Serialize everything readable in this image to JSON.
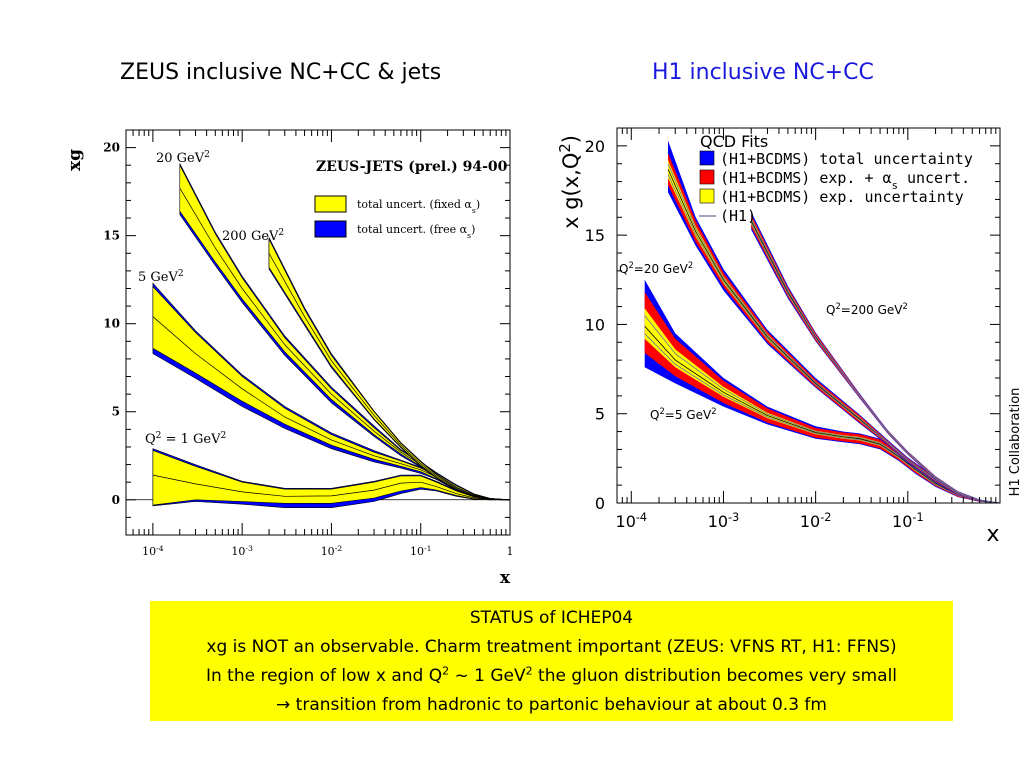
{
  "slide": {
    "title_left": "ZEUS inclusive NC+CC & jets",
    "title_right": "H1 inclusive NC+CC",
    "title_right_color": "#1a1adc",
    "status": {
      "title": "STATUS of ICHEP04",
      "line1": "xg is NOT an observable. Charm treatment important (ZEUS: VFNS RT, H1: FFNS)",
      "line2_pre": "In the region of low x and  Q",
      "line2_sup1": "2",
      "line2_mid": " ~ 1 GeV",
      "line2_sup2": "2",
      "line2_post": "  the gluon distribution becomes very small",
      "line3": "→ transition from hadronic to partonic behaviour at about 0.3 fm",
      "background": "#ffff00"
    }
  },
  "chart_data": [
    {
      "id": "zeus",
      "type": "area",
      "xscale": "log",
      "xlim": [
        5e-05,
        1
      ],
      "ylim": [
        -2,
        21
      ],
      "xticks": [
        0.0001,
        0.001,
        0.01,
        0.1,
        1
      ],
      "xtick_labels": [
        [
          "10",
          "-4"
        ],
        [
          "10",
          "-3"
        ],
        [
          "10",
          "-2"
        ],
        [
          "10",
          "-1"
        ],
        [
          "1",
          ""
        ]
      ],
      "yticks": [
        0,
        5,
        10,
        15,
        20
      ],
      "ytick_labels": [
        "0",
        "5",
        "10",
        "15",
        "20"
      ],
      "xlabel": "x",
      "ylabel": "xg",
      "title": "ZEUS-JETS (prel.) 94-00",
      "legend": [
        {
          "label": "total uncert. (fixed α",
          "sub": "s",
          "close": ")",
          "color": "#ffff00"
        },
        {
          "label": "total uncert. (free α",
          "sub": "s",
          "close": ")",
          "color": "#0000ff"
        }
      ],
      "band_colors": {
        "outer": "#0000ff",
        "inner": "#ffff00",
        "line": "#000000"
      },
      "series": [
        {
          "name": "Q2 = 1 GeV2",
          "label_main": "Q",
          "label_sup1": "2",
          "label_rest": " = 1 GeV",
          "label_sup2": "2",
          "x": [
            0.0001,
            0.0003,
            0.001,
            0.003,
            0.01,
            0.03,
            0.06,
            0.1,
            0.15,
            0.25,
            0.4,
            0.6,
            1.0
          ],
          "central": [
            1.4,
            0.9,
            0.45,
            0.2,
            0.22,
            0.55,
            0.95,
            1.0,
            0.75,
            0.35,
            0.1,
            0.02,
            0.0
          ],
          "inner_lo": [
            -0.3,
            0.0,
            -0.1,
            -0.2,
            -0.2,
            0.1,
            0.5,
            0.7,
            0.55,
            0.25,
            0.05,
            0.0,
            0.0
          ],
          "inner_hi": [
            2.8,
            1.9,
            1.0,
            0.6,
            0.6,
            1.0,
            1.35,
            1.35,
            1.0,
            0.5,
            0.15,
            0.03,
            0.0
          ],
          "outer_lo": [
            -0.35,
            -0.1,
            -0.25,
            -0.45,
            -0.45,
            -0.1,
            0.35,
            0.6,
            0.5,
            0.2,
            0.03,
            0.0,
            0.0
          ],
          "outer_hi": [
            2.9,
            2.0,
            1.05,
            0.65,
            0.65,
            1.05,
            1.4,
            1.4,
            1.05,
            0.55,
            0.17,
            0.03,
            0.0
          ]
        },
        {
          "name": "5 GeV2",
          "label_main": "5 GeV",
          "label_sup2": "2",
          "x": [
            0.0001,
            0.0003,
            0.001,
            0.003,
            0.01,
            0.03,
            0.06,
            0.1,
            0.15,
            0.25,
            0.4,
            0.6,
            1.0
          ],
          "central": [
            10.4,
            8.3,
            6.3,
            4.7,
            3.4,
            2.5,
            2.05,
            1.7,
            1.3,
            0.7,
            0.25,
            0.05,
            0.0
          ],
          "inner_lo": [
            8.6,
            7.2,
            5.6,
            4.3,
            3.1,
            2.3,
            1.9,
            1.6,
            1.2,
            0.6,
            0.2,
            0.03,
            0.0
          ],
          "inner_hi": [
            12.1,
            9.5,
            7.0,
            5.2,
            3.7,
            2.7,
            2.2,
            1.8,
            1.4,
            0.8,
            0.3,
            0.07,
            0.0
          ],
          "outer_lo": [
            8.3,
            6.9,
            5.3,
            4.05,
            2.9,
            2.15,
            1.8,
            1.5,
            1.15,
            0.55,
            0.18,
            0.02,
            0.0
          ],
          "outer_hi": [
            12.3,
            9.6,
            7.1,
            5.3,
            3.8,
            2.8,
            2.25,
            1.85,
            1.45,
            0.85,
            0.32,
            0.08,
            0.0
          ]
        },
        {
          "name": "20 GeV2",
          "label_main": "20 GeV",
          "label_sup2": "2",
          "x": [
            0.0002,
            0.0005,
            0.001,
            0.003,
            0.01,
            0.03,
            0.06,
            0.1,
            0.15,
            0.25,
            0.4,
            0.6,
            1.0
          ],
          "central": [
            17.7,
            14.3,
            12.0,
            8.8,
            6.0,
            3.9,
            2.7,
            2.0,
            1.4,
            0.7,
            0.25,
            0.05,
            0.0
          ],
          "inner_lo": [
            16.4,
            13.5,
            11.4,
            8.4,
            5.7,
            3.7,
            2.6,
            1.9,
            1.3,
            0.6,
            0.2,
            0.03,
            0.0
          ],
          "inner_hi": [
            19.0,
            15.1,
            12.6,
            9.2,
            6.3,
            4.1,
            2.8,
            2.1,
            1.5,
            0.8,
            0.3,
            0.07,
            0.0
          ],
          "outer_lo": [
            16.2,
            13.3,
            11.2,
            8.2,
            5.5,
            3.6,
            2.5,
            1.85,
            1.25,
            0.55,
            0.18,
            0.02,
            0.0
          ],
          "outer_hi": [
            19.1,
            15.2,
            12.7,
            9.3,
            6.4,
            4.2,
            2.85,
            2.15,
            1.55,
            0.85,
            0.32,
            0.08,
            0.0
          ]
        },
        {
          "name": "200 GeV2",
          "label_main": "200 GeV",
          "label_sup2": "2",
          "x": [
            0.002,
            0.005,
            0.01,
            0.03,
            0.06,
            0.1,
            0.15,
            0.25,
            0.4,
            0.6,
            1.0
          ],
          "central": [
            14.0,
            10.4,
            7.9,
            4.8,
            3.1,
            2.05,
            1.35,
            0.65,
            0.22,
            0.04,
            0.0
          ],
          "inner_lo": [
            13.2,
            10.0,
            7.6,
            4.6,
            3.0,
            1.95,
            1.28,
            0.6,
            0.19,
            0.03,
            0.0
          ],
          "inner_hi": [
            14.8,
            10.8,
            8.2,
            5.0,
            3.2,
            2.15,
            1.42,
            0.7,
            0.25,
            0.05,
            0.0
          ],
          "outer_lo": [
            13.1,
            9.9,
            7.5,
            4.55,
            2.95,
            1.9,
            1.25,
            0.58,
            0.18,
            0.02,
            0.0
          ],
          "outer_hi": [
            14.9,
            10.9,
            8.3,
            5.05,
            3.25,
            2.2,
            1.45,
            0.72,
            0.26,
            0.06,
            0.0
          ]
        }
      ]
    },
    {
      "id": "h1",
      "type": "area",
      "xscale": "log",
      "xlim": [
        7e-05,
        1
      ],
      "ylim": [
        0,
        21
      ],
      "xticks": [
        0.0001,
        0.001,
        0.01,
        0.1
      ],
      "xtick_labels": [
        [
          "10",
          "-4"
        ],
        [
          "10",
          "-3"
        ],
        [
          "10",
          "-2"
        ],
        [
          "10",
          "-1"
        ]
      ],
      "yticks": [
        0,
        5,
        10,
        15,
        20
      ],
      "ytick_labels": [
        "0",
        "5",
        "10",
        "15",
        "20"
      ],
      "xlabel": "x",
      "ylabel": "x g(x,Q",
      "ylabel_sup": "2",
      "ylabel_close": ")",
      "side_label": "H1 Collaboration",
      "legend_title": "QCD Fits",
      "legend": [
        {
          "label": "(H1+BCDMS) total uncertainty",
          "color": "#0000ff",
          "kind": "box"
        },
        {
          "label": "(H1+BCDMS) exp. + α",
          "sub": "s",
          "close": " uncert.",
          "color": "#ff0000",
          "kind": "box"
        },
        {
          "label": "(H1+BCDMS) exp. uncertainty",
          "color": "#ffff00",
          "kind": "box"
        },
        {
          "label": "(H1)",
          "color": "#6b6b9a",
          "kind": "line"
        }
      ],
      "band_colors": {
        "outer": "#0000ff",
        "middle": "#ff0000",
        "inner": "#ffff00",
        "line": "#000000",
        "h1": "#6b6b9a"
      },
      "series": [
        {
          "name": "Q2=5 GeV2",
          "label_main": "Q",
          "label_sup1": "2",
          "label_rest": "=5 GeV",
          "label_sup2": "2",
          "x": [
            0.00014,
            0.0003,
            0.001,
            0.003,
            0.01,
            0.02,
            0.03,
            0.05,
            0.08,
            0.12,
            0.2,
            0.35,
            0.6,
            1.0
          ],
          "central": [
            9.9,
            8.0,
            6.2,
            4.9,
            3.95,
            3.7,
            3.6,
            3.3,
            2.6,
            1.9,
            1.1,
            0.45,
            0.12,
            0.0
          ],
          "inner_lo": [
            9.2,
            7.6,
            5.95,
            4.75,
            3.85,
            3.6,
            3.5,
            3.2,
            2.5,
            1.8,
            1.0,
            0.4,
            0.1,
            0.0
          ],
          "inner_hi": [
            10.9,
            8.6,
            6.5,
            5.05,
            4.05,
            3.8,
            3.7,
            3.4,
            2.7,
            2.0,
            1.2,
            0.5,
            0.14,
            0.0
          ],
          "mid_lo": [
            8.4,
            7.1,
            5.6,
            4.5,
            3.65,
            3.45,
            3.35,
            3.05,
            2.4,
            1.7,
            0.95,
            0.35,
            0.08,
            0.0
          ],
          "mid_hi": [
            11.8,
            9.2,
            6.85,
            5.3,
            4.2,
            3.95,
            3.85,
            3.55,
            2.8,
            2.1,
            1.25,
            0.55,
            0.16,
            0.0
          ],
          "outer_lo": [
            7.6,
            6.7,
            5.4,
            4.4,
            3.6,
            3.4,
            3.3,
            3.0,
            2.35,
            1.65,
            0.9,
            0.33,
            0.07,
            0.0
          ],
          "outer_hi": [
            12.5,
            9.5,
            7.0,
            5.4,
            4.3,
            4.0,
            3.9,
            3.6,
            2.85,
            2.15,
            1.3,
            0.58,
            0.17,
            0.0
          ]
        },
        {
          "name": "Q2=20 GeV2",
          "label_main": "Q",
          "label_sup1": "2",
          "label_rest": "=20 GeV",
          "label_sup2": "2",
          "x": [
            0.00025,
            0.0005,
            0.001,
            0.003,
            0.01,
            0.03,
            0.06,
            0.1,
            0.2,
            0.35,
            0.6,
            1.0
          ],
          "central": [
            18.7,
            15.2,
            12.5,
            9.3,
            6.7,
            4.7,
            3.4,
            2.4,
            1.3,
            0.55,
            0.15,
            0.0
          ],
          "inner_lo": [
            18.2,
            14.9,
            12.3,
            9.15,
            6.6,
            4.6,
            3.35,
            2.35,
            1.25,
            0.5,
            0.12,
            0.0
          ],
          "inner_hi": [
            19.2,
            15.5,
            12.7,
            9.45,
            6.8,
            4.8,
            3.45,
            2.45,
            1.35,
            0.6,
            0.17,
            0.0
          ],
          "mid_lo": [
            17.8,
            14.6,
            12.1,
            9.0,
            6.5,
            4.5,
            3.3,
            2.3,
            1.2,
            0.47,
            0.1,
            0.0
          ],
          "mid_hi": [
            19.6,
            15.8,
            12.9,
            9.6,
            6.9,
            4.9,
            3.5,
            2.5,
            1.4,
            0.63,
            0.19,
            0.0
          ],
          "outer_lo": [
            17.4,
            14.4,
            11.9,
            8.9,
            6.45,
            4.45,
            3.25,
            2.25,
            1.15,
            0.45,
            0.09,
            0.0
          ],
          "outer_hi": [
            20.3,
            16.0,
            13.1,
            9.7,
            7.0,
            4.95,
            3.55,
            2.55,
            1.45,
            0.65,
            0.2,
            0.0
          ]
        },
        {
          "name": "Q2=200 GeV2",
          "label_main": "Q",
          "label_sup1": "2",
          "label_rest": "=200 GeV",
          "label_sup2": "2",
          "x": [
            0.002,
            0.005,
            0.01,
            0.03,
            0.06,
            0.1,
            0.2,
            0.35,
            0.6,
            1.0
          ],
          "central": [
            15.8,
            11.8,
            9.3,
            6.0,
            4.0,
            2.8,
            1.4,
            0.6,
            0.15,
            0.0
          ],
          "inner_lo": [
            15.6,
            11.65,
            9.2,
            5.95,
            3.95,
            2.75,
            1.35,
            0.57,
            0.13,
            0.0
          ],
          "inner_hi": [
            16.0,
            11.95,
            9.4,
            6.05,
            4.05,
            2.85,
            1.45,
            0.63,
            0.17,
            0.0
          ],
          "mid_lo": [
            15.45,
            11.55,
            9.1,
            5.9,
            3.92,
            2.72,
            1.32,
            0.55,
            0.12,
            0.0
          ],
          "mid_hi": [
            16.15,
            12.05,
            9.5,
            6.1,
            4.08,
            2.88,
            1.48,
            0.65,
            0.18,
            0.0
          ],
          "outer_lo": [
            15.3,
            11.45,
            9.05,
            5.87,
            3.9,
            2.7,
            1.3,
            0.54,
            0.11,
            0.0
          ],
          "outer_hi": [
            16.3,
            12.15,
            9.55,
            6.13,
            4.1,
            2.9,
            1.5,
            0.66,
            0.19,
            0.0
          ]
        }
      ]
    }
  ]
}
